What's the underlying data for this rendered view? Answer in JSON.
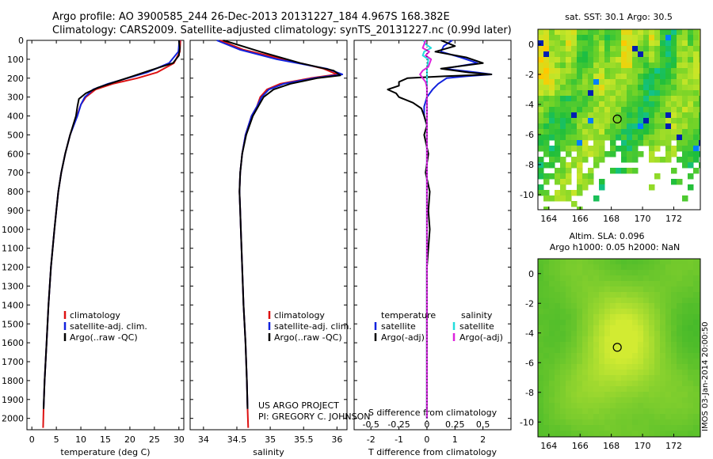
{
  "title_line1": "Argo profile: AO 3900585_244 26-Dec-2013 20131227_184 4.967S 168.382E",
  "title_line2": "Climatology: CARS2009. Satellite-adjusted climatology: synTS_20131227.nc (0.99d later)",
  "project_line1": "US ARGO PROJECT",
  "project_line2": "PI: GREGORY C. JOHNSON",
  "side_label": "IMOS 03-Jan-2014 20:00:50",
  "colors": {
    "climatology": "#dd1111",
    "satellite": "#1122dd",
    "argo": "#000000",
    "sal_satellite": "#22dddd",
    "sal_argo": "#dd22dd"
  },
  "chart_data": [
    {
      "id": "temperature",
      "type": "line",
      "xlabel": "temperature (deg C)",
      "ylabel": "depth",
      "xlim": [
        -1,
        31
      ],
      "ylim": [
        2060,
        0
      ],
      "xticks": [
        0,
        5,
        10,
        15,
        20,
        25,
        30
      ],
      "yticks": [
        0,
        100,
        200,
        300,
        400,
        500,
        600,
        700,
        800,
        900,
        1000,
        1100,
        1200,
        1300,
        1400,
        1500,
        1600,
        1700,
        1800,
        1900,
        2000
      ],
      "legend": [
        "climatology",
        "satellite-adj. clim.",
        "Argo(..raw -QC)"
      ],
      "series": [
        {
          "name": "climatology",
          "color_key": "climatology",
          "depth": [
            0,
            60,
            120,
            170,
            200,
            230,
            260,
            300,
            340,
            400,
            500,
            600,
            700,
            800,
            900,
            1000,
            1200,
            1400,
            1600,
            1800,
            1950,
            2050
          ],
          "values": [
            30.3,
            30.2,
            29.0,
            25.5,
            21.5,
            16.5,
            13.0,
            11.0,
            10.0,
            9.2,
            7.8,
            6.8,
            6.0,
            5.4,
            5.0,
            4.6,
            3.9,
            3.4,
            3.0,
            2.6,
            2.4,
            2.3
          ]
        },
        {
          "name": "satellite-adj. clim.",
          "color_key": "satellite",
          "depth": [
            0,
            60,
            120,
            170,
            200,
            230,
            260,
            300,
            340,
            400,
            500,
            600,
            700,
            800,
            900,
            1000,
            1200,
            1400,
            1600,
            1800,
            1950
          ],
          "values": [
            30.1,
            29.9,
            28.0,
            23.5,
            19.5,
            15.5,
            12.5,
            10.8,
            10.0,
            9.3,
            7.8,
            6.8,
            6.0,
            5.4,
            5.0,
            4.6,
            3.9,
            3.4,
            3.0,
            2.6,
            2.4
          ]
        },
        {
          "name": "Argo(..raw -QC)",
          "color_key": "argo",
          "depth": [
            0,
            40,
            80,
            120,
            160,
            190,
            220,
            250,
            280,
            310,
            350,
            400,
            500,
            600,
            700,
            800,
            900,
            1000,
            1200,
            1400,
            1600,
            1800,
            1950
          ],
          "values": [
            30.0,
            30.2,
            30.0,
            28.8,
            24.0,
            20.5,
            17.0,
            13.5,
            11.0,
            9.6,
            9.3,
            9.0,
            7.8,
            6.8,
            6.0,
            5.4,
            5.0,
            4.6,
            3.9,
            3.4,
            3.0,
            2.6,
            2.4
          ]
        }
      ]
    },
    {
      "id": "salinity",
      "type": "line",
      "xlabel": "salinity",
      "ylim": [
        2060,
        0
      ],
      "xlim": [
        33.8,
        36.15
      ],
      "xticks": [
        34,
        34.5,
        35,
        35.5,
        36
      ],
      "legend": [
        "climatology",
        "satellite-adj. clim.",
        "Argo(..raw -QC)"
      ],
      "series": [
        {
          "name": "climatology",
          "color_key": "climatology",
          "depth": [
            0,
            50,
            100,
            150,
            180,
            200,
            230,
            260,
            300,
            350,
            400,
            500,
            600,
            700,
            800,
            900,
            1000,
            1200,
            1400,
            1600,
            1800,
            1950,
            2050
          ],
          "values": [
            34.25,
            34.6,
            35.2,
            35.8,
            36.0,
            35.6,
            35.15,
            34.95,
            34.85,
            34.8,
            34.72,
            34.63,
            34.58,
            34.55,
            34.54,
            34.55,
            34.56,
            34.58,
            34.6,
            34.63,
            34.65,
            34.66,
            34.67
          ]
        },
        {
          "name": "satellite-adj. clim.",
          "color_key": "satellite",
          "depth": [
            0,
            50,
            100,
            150,
            180,
            200,
            230,
            260,
            300,
            350,
            400,
            500,
            600,
            700,
            800,
            900,
            1000,
            1200,
            1400,
            1600,
            1800,
            1950
          ],
          "values": [
            34.2,
            34.55,
            35.1,
            35.85,
            36.08,
            35.65,
            35.2,
            34.98,
            34.87,
            34.8,
            34.72,
            34.63,
            34.58,
            34.55,
            34.54,
            34.55,
            34.56,
            34.58,
            34.6,
            34.63,
            34.65,
            34.66
          ]
        },
        {
          "name": "Argo(..raw -QC)",
          "color_key": "argo",
          "depth": [
            0,
            60,
            120,
            160,
            185,
            200,
            230,
            260,
            300,
            350,
            400,
            500,
            600,
            700,
            800,
            900,
            1000,
            1200,
            1400,
            1600,
            1800,
            1950
          ],
          "values": [
            34.3,
            34.85,
            35.45,
            35.95,
            36.05,
            35.7,
            35.3,
            35.05,
            34.9,
            34.82,
            34.74,
            34.64,
            34.58,
            34.55,
            34.54,
            34.55,
            34.56,
            34.58,
            34.6,
            34.63,
            34.65,
            34.66
          ]
        }
      ]
    },
    {
      "id": "difference",
      "type": "line",
      "xlabel": "T difference from climatology",
      "xlabel_top": "S difference from climatology",
      "ylim": [
        2060,
        0
      ],
      "xlim": [
        -2.6,
        3.0
      ],
      "xticks": [
        -2,
        -1,
        0,
        1,
        2
      ],
      "xticks_sal": [
        "-0.5",
        "-0.25",
        "0",
        "0.25",
        "0.5"
      ],
      "legend_titles": [
        "temperature",
        "salinity"
      ],
      "legend": [
        "satellite",
        "Argo(-adj)",
        "satellite",
        "Argo(-adj)"
      ],
      "series": [
        {
          "name": "temperature satellite",
          "color_key": "satellite",
          "depth": [
            0,
            30,
            60,
            90,
            120,
            150,
            170,
            180,
            190,
            200,
            230,
            260,
            300,
            350,
            400,
            450,
            500,
            600,
            800,
            1000,
            1200,
            1500,
            1800,
            2000
          ],
          "values": [
            0.9,
            0.6,
            0.5,
            1.2,
            1.8,
            0.6,
            1.8,
            2.3,
            1.4,
            0.7,
            0.4,
            0.2,
            0.0,
            -0.1,
            -0.1,
            0.0,
            0.0,
            0.0,
            0.0,
            0.0,
            0.0,
            0.0,
            0.0,
            0.0
          ]
        },
        {
          "name": "temperature Argo(-adj)",
          "color_key": "argo",
          "depth": [
            0,
            30,
            60,
            90,
            120,
            150,
            170,
            180,
            190,
            200,
            220,
            240,
            260,
            280,
            300,
            330,
            360,
            400,
            450,
            500,
            600,
            700,
            800,
            900,
            1000,
            1200,
            1500,
            1800,
            2000
          ],
          "values": [
            0.5,
            1.0,
            0.3,
            1.4,
            2.0,
            0.5,
            1.5,
            2.3,
            0.6,
            -0.7,
            -1.0,
            -1.0,
            -1.4,
            -1.1,
            -1.0,
            -0.5,
            -0.2,
            -0.1,
            0.0,
            -0.1,
            0.05,
            -0.05,
            0.1,
            0.05,
            0.1,
            0.0,
            0.0,
            0.0,
            0.0
          ]
        },
        {
          "name": "salinity satellite",
          "color_key": "sal_satellite",
          "depth": [
            0,
            20,
            40,
            60,
            80,
            100,
            150,
            200,
            300,
            400,
            600,
            800,
            1000,
            1500,
            2000
          ],
          "values": [
            -0.12,
            -0.05,
            0.15,
            -0.1,
            -0.15,
            0.05,
            0.0,
            0.0,
            0.0,
            0.0,
            0.0,
            0.0,
            0.0,
            0.0,
            0.0
          ]
        },
        {
          "name": "salinity Argo(-adj)",
          "color_key": "sal_argo",
          "depth": [
            0,
            40,
            60,
            80,
            100,
            140,
            160,
            180,
            200,
            220,
            250,
            300,
            400,
            600,
            1000,
            1500,
            2000
          ],
          "values": [
            -0.05,
            -0.15,
            0.08,
            -0.05,
            0.15,
            0.05,
            -0.15,
            -0.25,
            -0.15,
            -0.05,
            0.0,
            0.0,
            0.0,
            0.0,
            0.0,
            0.0,
            0.0
          ]
        }
      ]
    },
    {
      "id": "sst_map",
      "type": "heatmap",
      "title": "sat. SST: 30.1  Argo: 30.5",
      "xlim": [
        163.3,
        173.7
      ],
      "ylim": [
        -11,
        1
      ],
      "xticks": [
        164,
        166,
        168,
        170,
        172
      ],
      "yticks": [
        0,
        -2,
        -4,
        -6,
        -8,
        -10
      ],
      "marker": {
        "lon": 168.382,
        "lat": -4.967
      }
    },
    {
      "id": "sla_map",
      "type": "heatmap",
      "title_line1": "Altim. SLA: 0.096",
      "title_line2": "Argo h1000: 0.05 h2000: NaN",
      "xlim": [
        163.3,
        173.7
      ],
      "ylim": [
        -11,
        1
      ],
      "xticks": [
        164,
        166,
        168,
        170,
        172
      ],
      "yticks": [
        0,
        -2,
        -4,
        -6,
        -8,
        -10
      ],
      "marker": {
        "lon": 168.382,
        "lat": -4.967
      }
    }
  ]
}
